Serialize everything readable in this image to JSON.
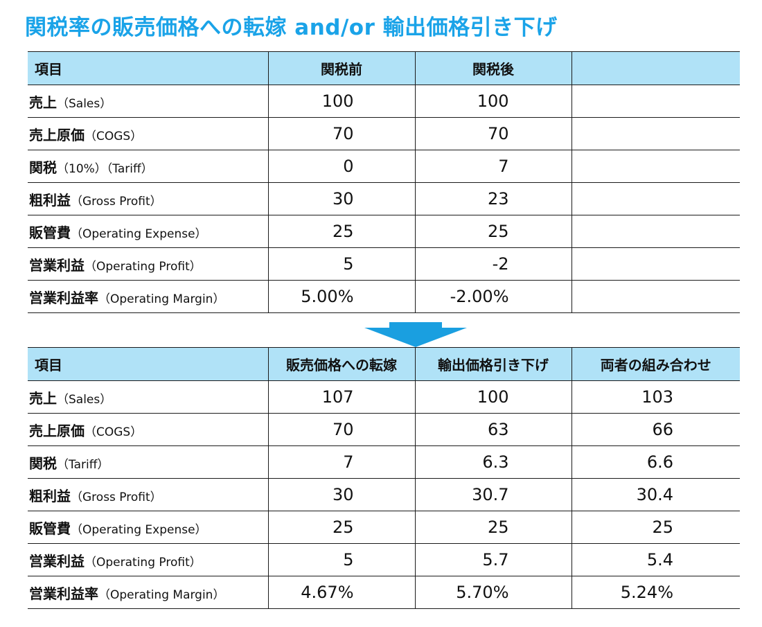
{
  "title": "関税率の販売価格への転嫁 and/or 輸出価格引き下げ",
  "table_before": {
    "headers": [
      "項目",
      "関税前",
      "関税後",
      ""
    ],
    "rows": [
      {
        "label_jp": "売上",
        "label_en": "（Sales）",
        "v1": "100",
        "v2": "100",
        "v3": ""
      },
      {
        "label_jp": "売上原価",
        "label_en": "（COGS）",
        "v1": "70",
        "v2": "70",
        "v3": ""
      },
      {
        "label_jp": "関税",
        "label_en": "（10%）（Tariff）",
        "v1": "0",
        "v2": "7",
        "v3": ""
      },
      {
        "label_jp": "粗利益",
        "label_en": "（Gross Profit）",
        "v1": "30",
        "v2": "23",
        "v3": ""
      },
      {
        "label_jp": "販管費",
        "label_en": "（Operating Expense）",
        "v1": "25",
        "v2": "25",
        "v3": ""
      },
      {
        "label_jp": "営業利益",
        "label_en": "（Operating Profit）",
        "v1": "5",
        "v2": "-2",
        "v3": ""
      },
      {
        "label_jp": "営業利益率",
        "label_en": "（Operating Margin）",
        "v1": "5.00%",
        "v2": "-2.00%",
        "v3": ""
      }
    ]
  },
  "arrow_icon": "arrow-down-icon",
  "colors": {
    "title": "#1aa3e8",
    "header_bg": "#b0e2f7",
    "arrow": "#1a9fe0"
  },
  "table_after": {
    "headers": [
      "項目",
      "販売価格への転嫁",
      "輸出価格引き下げ",
      "両者の組み合わせ"
    ],
    "rows": [
      {
        "label_jp": "売上",
        "label_en": "（Sales）",
        "v1": "107",
        "v2": "100",
        "v3": "103"
      },
      {
        "label_jp": "売上原価",
        "label_en": "（COGS）",
        "v1": "70",
        "v2": "63",
        "v3": "66"
      },
      {
        "label_jp": "関税",
        "label_en": "（Tariff）",
        "v1": "7",
        "v2": "6.3",
        "v3": "6.6"
      },
      {
        "label_jp": "粗利益",
        "label_en": "（Gross Profit）",
        "v1": "30",
        "v2": "30.7",
        "v3": "30.4"
      },
      {
        "label_jp": "販管費",
        "label_en": "（Operating Expense）",
        "v1": "25",
        "v2": "25",
        "v3": "25"
      },
      {
        "label_jp": "営業利益",
        "label_en": "（Operating Profit）",
        "v1": "5",
        "v2": "5.7",
        "v3": "5.4"
      },
      {
        "label_jp": "営業利益率",
        "label_en": "（Operating Margin）",
        "v1": "4.67%",
        "v2": "5.70%",
        "v3": "5.24%"
      }
    ]
  }
}
